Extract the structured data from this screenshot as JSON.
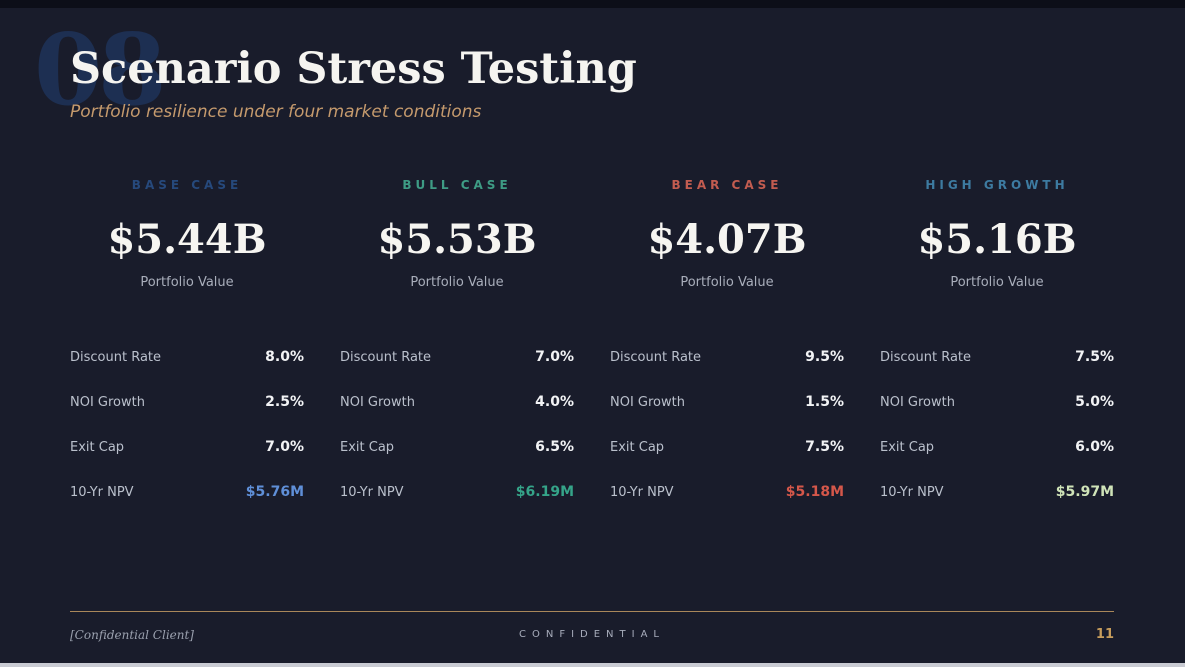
{
  "slide": {
    "watermark": "08",
    "title": "Scenario Stress Testing",
    "subtitle": "Portfolio resilience under four market conditions",
    "background_color": "#191c2b"
  },
  "scenarios": [
    {
      "name": "BASE CASE",
      "accent_color": "#26497c",
      "portfolio_value": "$5.44B",
      "portfolio_value_label": "Portfolio Value",
      "metrics": [
        {
          "label": "Discount Rate",
          "value": "8.0%"
        },
        {
          "label": "NOI Growth",
          "value": "2.5%"
        },
        {
          "label": "Exit Cap",
          "value": "7.0%"
        },
        {
          "label": "10-Yr NPV",
          "value": "$5.76M",
          "value_color": "#5f8fd8"
        }
      ]
    },
    {
      "name": "BULL CASE",
      "accent_color": "#3e9c85",
      "portfolio_value": "$5.53B",
      "portfolio_value_label": "Portfolio Value",
      "metrics": [
        {
          "label": "Discount Rate",
          "value": "7.0%"
        },
        {
          "label": "NOI Growth",
          "value": "4.0%"
        },
        {
          "label": "Exit Cap",
          "value": "6.5%"
        },
        {
          "label": "10-Yr NPV",
          "value": "$6.19M",
          "value_color": "#35a489"
        }
      ]
    },
    {
      "name": "BEAR CASE",
      "accent_color": "#c25c50",
      "portfolio_value": "$4.07B",
      "portfolio_value_label": "Portfolio Value",
      "metrics": [
        {
          "label": "Discount Rate",
          "value": "9.5%"
        },
        {
          "label": "NOI Growth",
          "value": "1.5%"
        },
        {
          "label": "Exit Cap",
          "value": "7.5%"
        },
        {
          "label": "10-Yr NPV",
          "value": "$5.18M",
          "value_color": "#d4574a"
        }
      ]
    },
    {
      "name": "HIGH GROWTH",
      "accent_color": "#3d7ba1",
      "portfolio_value": "$5.16B",
      "portfolio_value_label": "Portfolio Value",
      "metrics": [
        {
          "label": "Discount Rate",
          "value": "7.5%"
        },
        {
          "label": "NOI Growth",
          "value": "5.0%"
        },
        {
          "label": "Exit Cap",
          "value": "6.0%"
        },
        {
          "label": "10-Yr NPV",
          "value": "$5.97M",
          "value_color": "#cfe3b8"
        }
      ]
    }
  ],
  "footer": {
    "client": "[Confidential Client]",
    "label": "CONFIDENTIAL",
    "page_number": "11",
    "rule_color": "#a9875a"
  }
}
